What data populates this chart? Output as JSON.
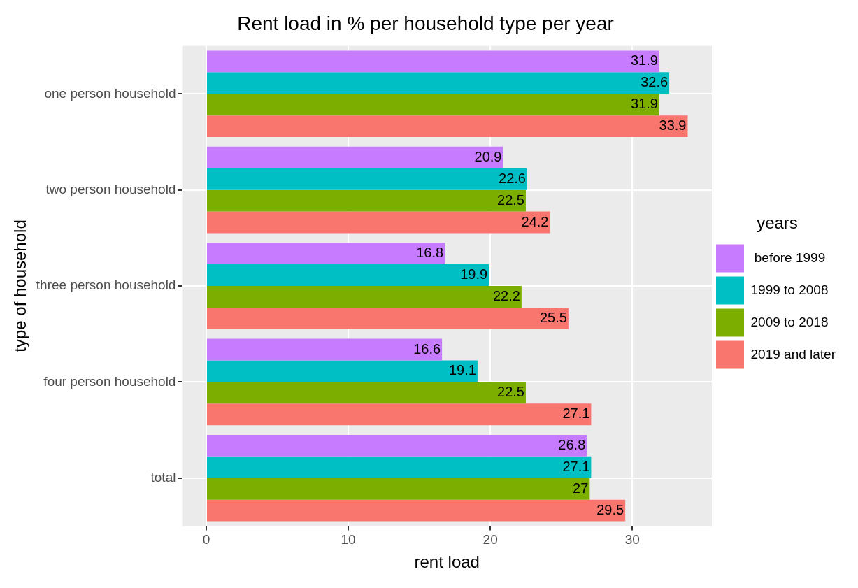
{
  "chart_data": {
    "type": "bar",
    "orientation": "horizontal",
    "title": "Rent load in % per household type per year",
    "xlabel": "rent load",
    "ylabel": "type of household",
    "legend_title": "years",
    "legend": "right",
    "grid": true,
    "data_labels": true,
    "categories": [
      "one person household",
      "two person household",
      "three person household",
      "four person household",
      "total"
    ],
    "series": [
      {
        "name": " before 1999",
        "color": "#c77cff",
        "values": [
          31.9,
          20.9,
          16.8,
          16.6,
          26.8
        ]
      },
      {
        "name": "1999 to 2008",
        "color": "#00bfc4",
        "values": [
          32.6,
          22.6,
          19.9,
          19.1,
          27.1
        ]
      },
      {
        "name": "2009 to 2018",
        "color": "#7cae00",
        "values": [
          31.9,
          22.5,
          22.2,
          22.5,
          27
        ]
      },
      {
        "name": "2019 and later",
        "color": "#f8766d",
        "values": [
          33.9,
          24.2,
          25.5,
          27.1,
          29.5
        ]
      }
    ],
    "xlim": [
      -1.7,
      35.6
    ],
    "xticks": [
      0,
      10,
      20,
      30
    ]
  }
}
